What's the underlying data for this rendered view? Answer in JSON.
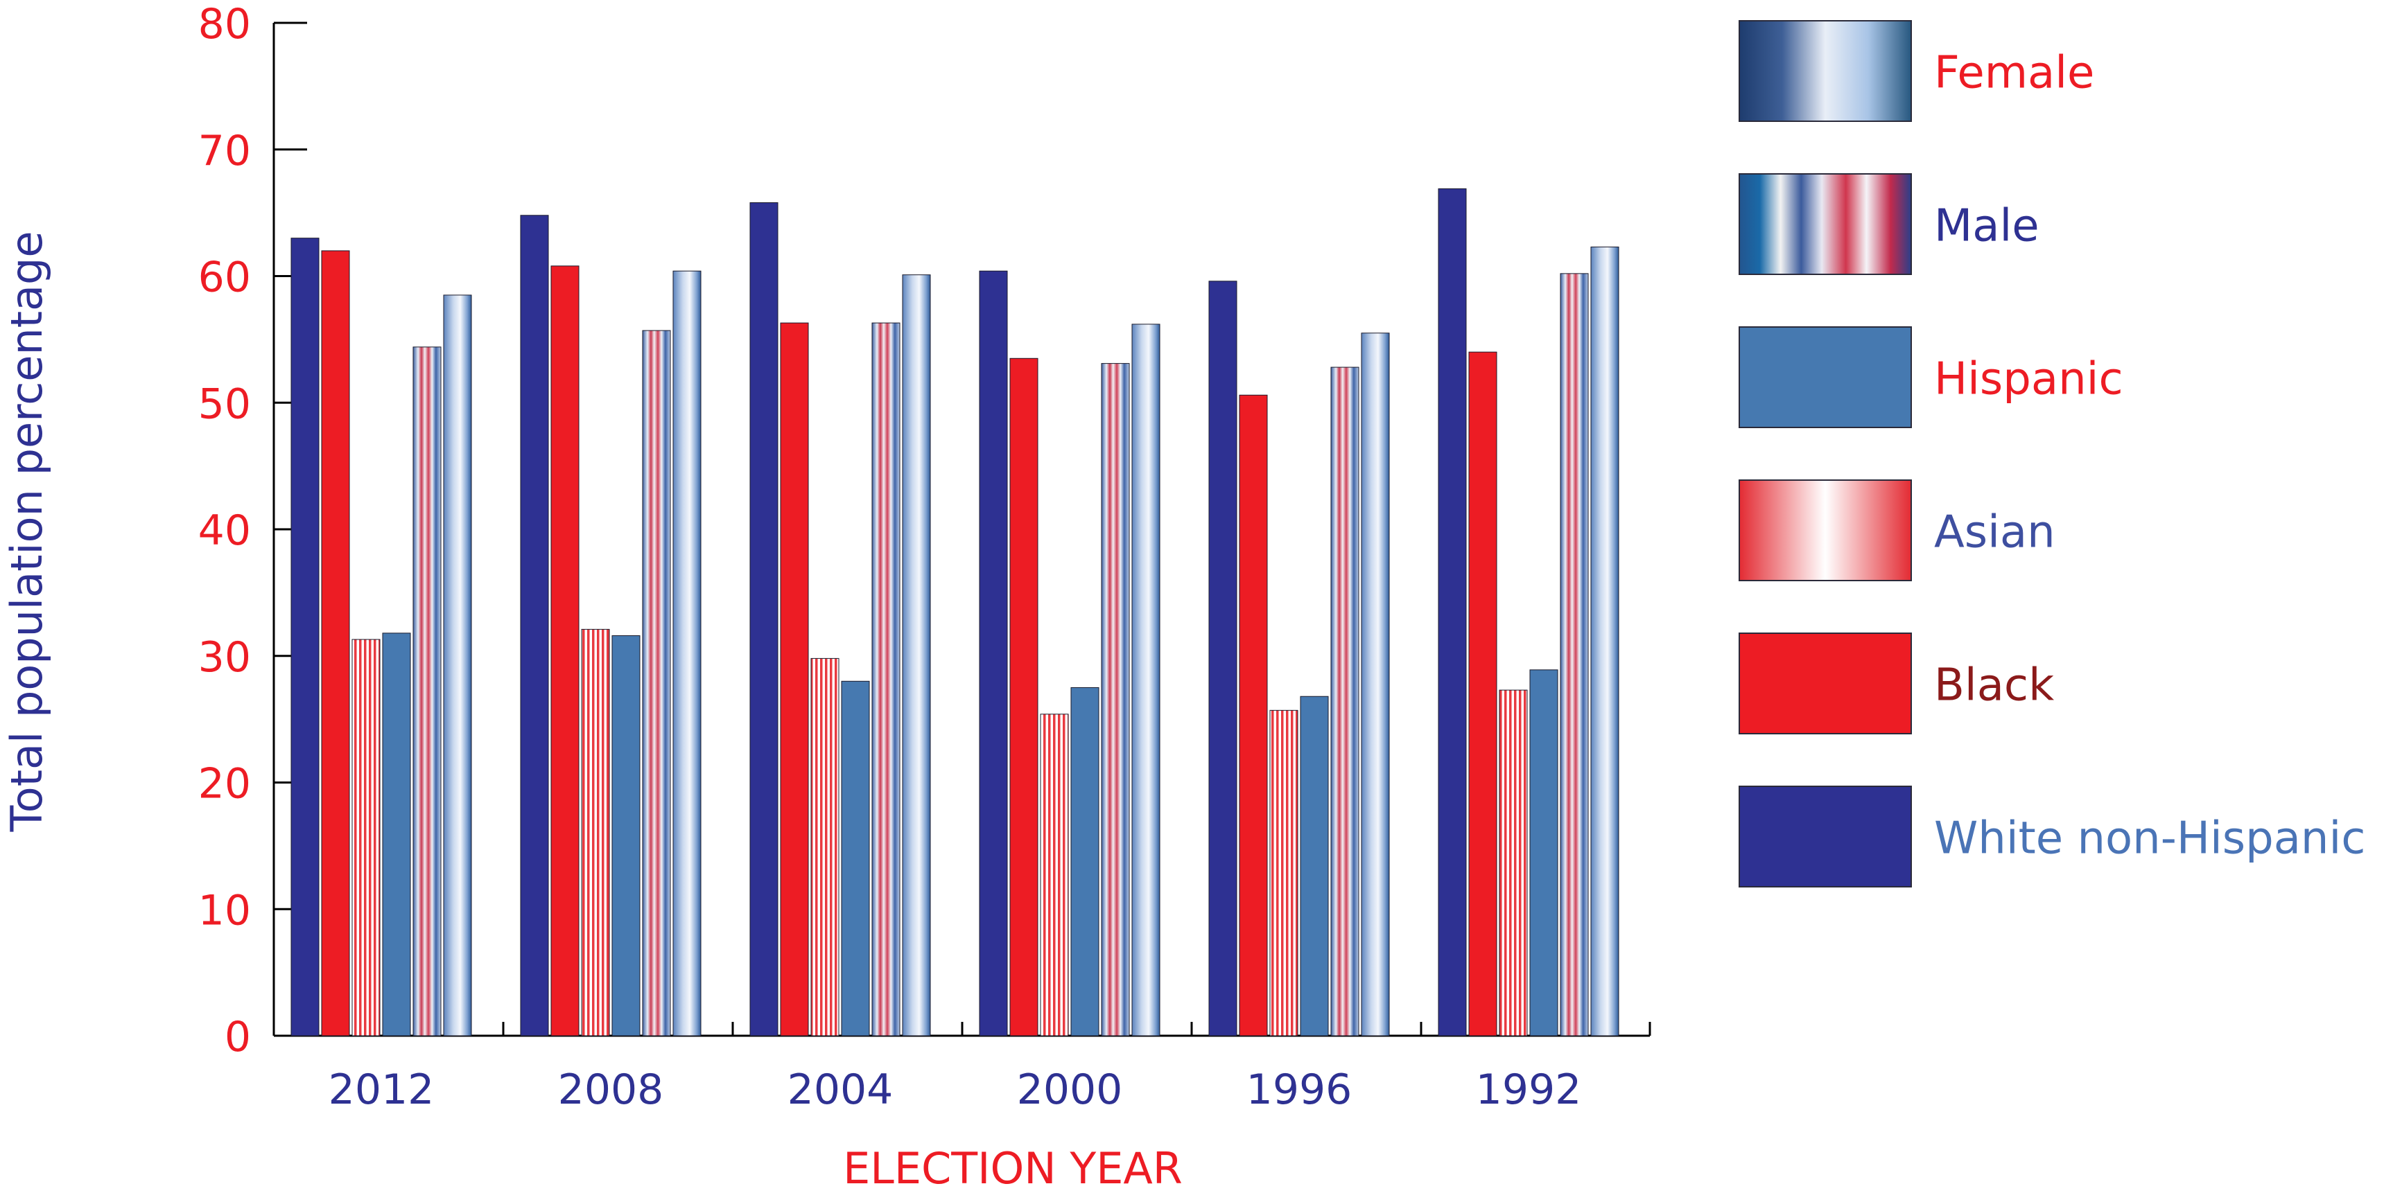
{
  "chart_data": {
    "type": "bar",
    "title": "",
    "xlabel": "ELECTION YEAR",
    "ylabel": "Total population percentage",
    "ylim": [
      0,
      80
    ],
    "yticks": [
      0,
      10,
      20,
      30,
      40,
      50,
      60,
      70,
      80
    ],
    "grid": false,
    "legend_position": "right",
    "categories": [
      "2012",
      "2008",
      "2004",
      "2000",
      "1996",
      "1992"
    ],
    "series": [
      {
        "name": "White non-Hispanic",
        "style": "white-solid",
        "values": [
          63.0,
          64.8,
          65.8,
          60.4,
          59.6,
          66.9
        ]
      },
      {
        "name": "Black",
        "style": "black-solid",
        "values": [
          62.0,
          60.8,
          56.3,
          53.5,
          50.6,
          54.0
        ]
      },
      {
        "name": "Asian",
        "style": "asian-stripes",
        "values": [
          31.3,
          32.1,
          29.8,
          25.4,
          25.7,
          27.3
        ]
      },
      {
        "name": "Hispanic",
        "style": "hispanic-solid",
        "values": [
          31.8,
          31.6,
          28.0,
          27.5,
          26.8,
          28.9
        ]
      },
      {
        "name": "Male",
        "style": "male-stripes",
        "values": [
          54.4,
          55.7,
          56.3,
          53.1,
          52.8,
          60.2
        ]
      },
      {
        "name": "Female",
        "style": "female-gradient",
        "values": [
          58.5,
          60.4,
          60.1,
          56.2,
          55.5,
          62.3
        ]
      }
    ],
    "legend": [
      {
        "name": "Female",
        "style": "female-gradient",
        "label_color": "#ED1C24"
      },
      {
        "name": "Male",
        "style": "male-stripes",
        "label_color": "#2E3192"
      },
      {
        "name": "Hispanic",
        "style": "hispanic-solid",
        "label_color": "#ED1C24"
      },
      {
        "name": "Asian",
        "style": "asian-stripes",
        "label_color": "#3E4FA0"
      },
      {
        "name": "Black",
        "style": "black-solid",
        "label_color": "#8B1A1A"
      },
      {
        "name": "White non-Hispanic",
        "style": "white-solid",
        "label_color": "#4A74B6"
      }
    ],
    "colors": {
      "navy": "#2E3192",
      "red": "#ED1C24",
      "steel_blue": "#4679B0",
      "tick_label_y": "#ED1C24",
      "tick_label_x": "#2E3192",
      "xlabel": "#ED1C24",
      "ylabel": "#2E3192",
      "axis": "#000000"
    }
  }
}
